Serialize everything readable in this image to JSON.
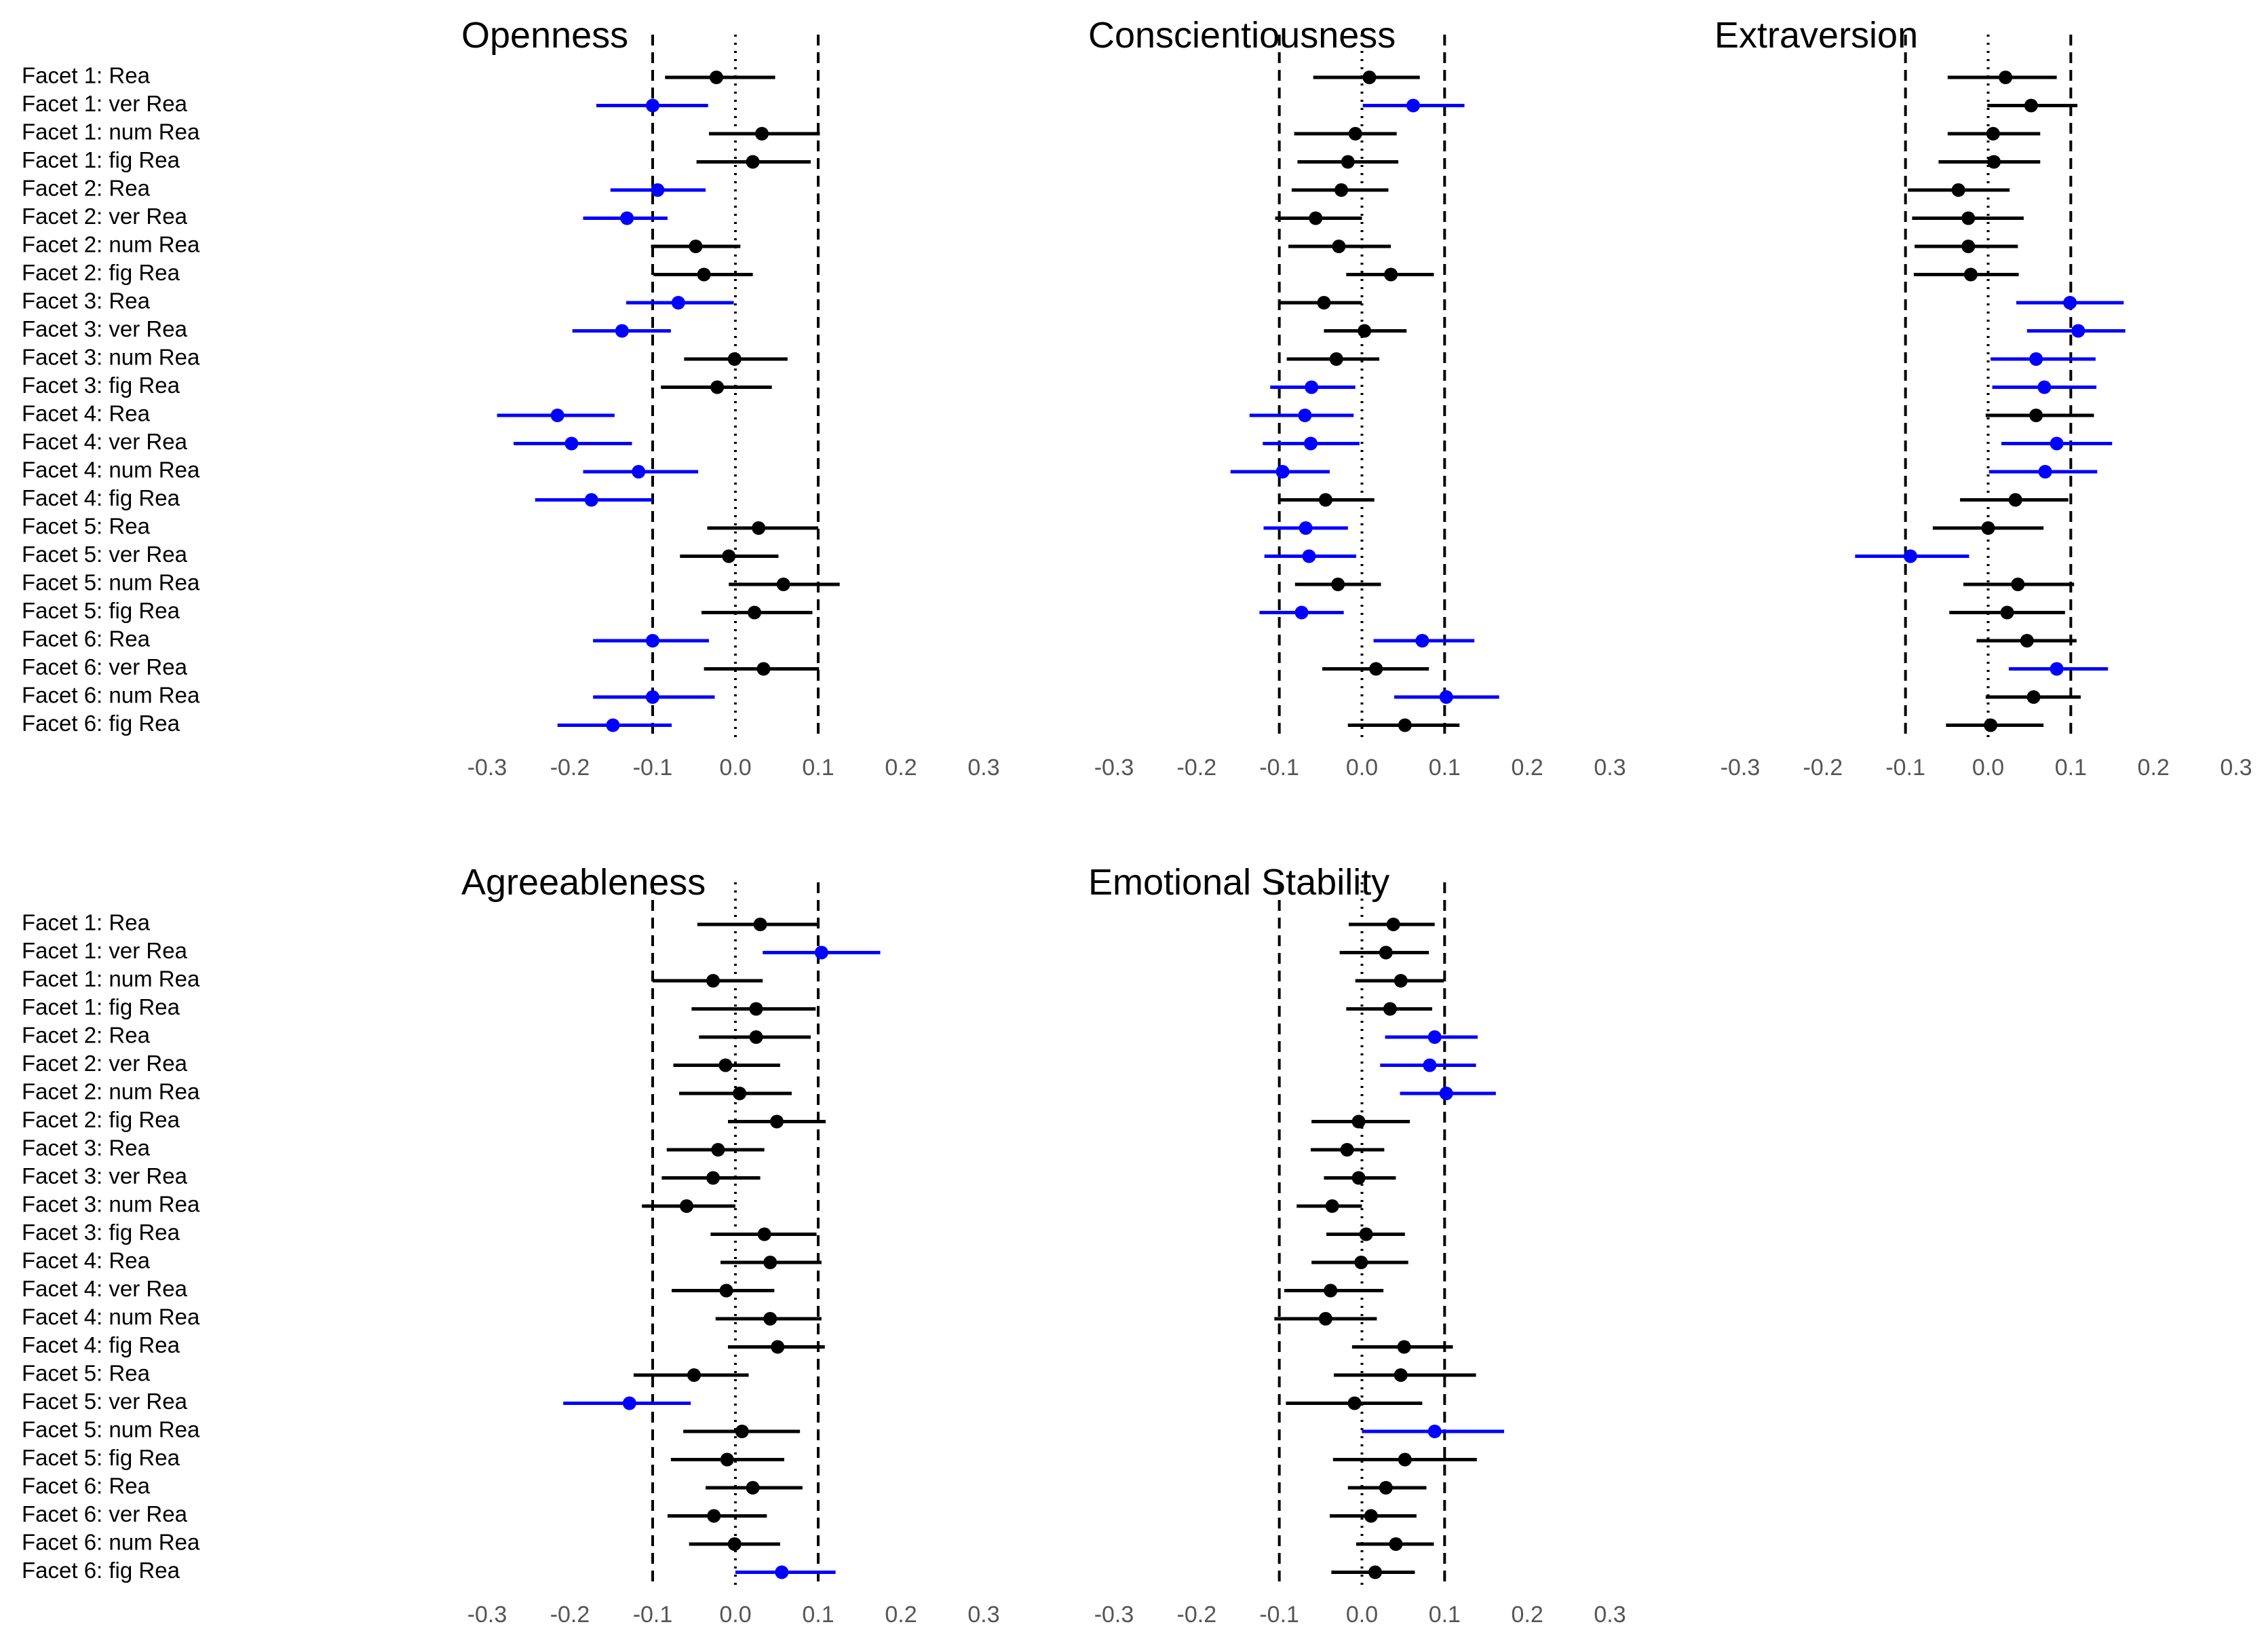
{
  "chart_data": {
    "type": "forest",
    "xlim": [
      -0.3,
      0.3
    ],
    "x_ticks": [
      -0.3,
      -0.2,
      -0.1,
      0.0,
      0.1,
      0.2,
      0.3
    ],
    "x_tick_labels": [
      "-0.3",
      "-0.2",
      "-0.1",
      "0.0",
      "0.1",
      "0.2",
      "0.3"
    ],
    "reference_lines": {
      "dashed": [
        -0.1,
        0.1
      ],
      "dotted": [
        0.0
      ]
    },
    "colors": {
      "default": "#000000",
      "highlight": "#0000ff",
      "tick": "#555555"
    },
    "row_labels": [
      "Facet 1: Rea",
      "Facet 1: ver Rea",
      "Facet 1: num Rea",
      "Facet 1: fig Rea",
      "Facet 2: Rea",
      "Facet 2: ver Rea",
      "Facet 2: num Rea",
      "Facet 2: fig Rea",
      "Facet 3: Rea",
      "Facet 3: ver Rea",
      "Facet 3: num Rea",
      "Facet 3: fig Rea",
      "Facet 4: Rea",
      "Facet 4: ver Rea",
      "Facet 4: num Rea",
      "Facet 4: fig Rea",
      "Facet 5: Rea",
      "Facet 5: ver Rea",
      "Facet 5: num Rea",
      "Facet 5: fig Rea",
      "Facet 6: Rea",
      "Facet 6: ver Rea",
      "Facet 6: num Rea",
      "Facet 6: fig Rea"
    ],
    "panels": [
      {
        "title": "Openness",
        "estimates": [
          -0.023,
          -0.1,
          0.032,
          0.021,
          -0.094,
          -0.131,
          -0.048,
          -0.038,
          -0.069,
          -0.137,
          -0.001,
          -0.022,
          -0.215,
          -0.198,
          -0.117,
          -0.174,
          0.028,
          -0.008,
          0.058,
          0.023,
          -0.1,
          0.034,
          -0.1,
          -0.148
        ],
        "lower": [
          -0.085,
          -0.168,
          -0.032,
          -0.047,
          -0.151,
          -0.184,
          -0.102,
          -0.099,
          -0.132,
          -0.197,
          -0.062,
          -0.09,
          -0.288,
          -0.268,
          -0.184,
          -0.242,
          -0.034,
          -0.067,
          -0.008,
          -0.041,
          -0.172,
          -0.038,
          -0.172,
          -0.215
        ],
        "upper": [
          0.048,
          -0.033,
          0.102,
          0.091,
          -0.036,
          -0.082,
          0.006,
          0.021,
          -0.002,
          -0.078,
          0.063,
          0.044,
          -0.146,
          -0.125,
          -0.045,
          -0.1,
          0.1,
          0.052,
          0.126,
          0.093,
          -0.032,
          0.101,
          -0.025,
          -0.077
        ],
        "significant": [
          false,
          true,
          false,
          false,
          true,
          true,
          false,
          false,
          true,
          true,
          false,
          false,
          true,
          true,
          true,
          true,
          false,
          false,
          false,
          false,
          true,
          false,
          true,
          true
        ]
      },
      {
        "title": "Conscientiousness",
        "estimates": [
          0.009,
          0.062,
          -0.008,
          -0.017,
          -0.025,
          -0.056,
          -0.028,
          0.035,
          -0.046,
          0.003,
          -0.031,
          -0.061,
          -0.069,
          -0.062,
          -0.096,
          -0.044,
          -0.068,
          -0.064,
          -0.029,
          -0.073,
          0.073,
          0.017,
          0.102,
          0.052
        ],
        "lower": [
          -0.059,
          0.001,
          -0.082,
          -0.078,
          -0.085,
          -0.105,
          -0.089,
          -0.019,
          -0.1,
          -0.046,
          -0.091,
          -0.111,
          -0.136,
          -0.12,
          -0.159,
          -0.101,
          -0.119,
          -0.118,
          -0.081,
          -0.124,
          0.014,
          -0.048,
          0.039,
          -0.017
        ],
        "upper": [
          0.07,
          0.124,
          0.042,
          0.044,
          0.032,
          0.0,
          0.035,
          0.087,
          0.0,
          0.054,
          0.021,
          -0.008,
          -0.01,
          -0.003,
          -0.039,
          0.015,
          -0.017,
          -0.007,
          0.023,
          -0.022,
          0.136,
          0.081,
          0.166,
          0.118
        ]
      },
      {
        "title": "Extraversion",
        "estimates": [
          0.021,
          0.052,
          0.006,
          0.007,
          -0.036,
          -0.024,
          -0.024,
          -0.021,
          0.099,
          0.109,
          0.058,
          0.068,
          0.058,
          0.083,
          0.069,
          0.033,
          0.0,
          -0.094,
          0.036,
          0.023,
          0.047,
          0.083,
          0.055,
          0.003
        ],
        "lower": [
          -0.049,
          -0.001,
          -0.049,
          -0.06,
          -0.097,
          -0.092,
          -0.089,
          -0.09,
          0.034,
          0.047,
          0.003,
          0.005,
          -0.003,
          0.016,
          0.001,
          -0.034,
          -0.067,
          -0.161,
          -0.03,
          -0.047,
          -0.014,
          0.025,
          -0.003,
          -0.051
        ],
        "upper": [
          0.083,
          0.108,
          0.063,
          0.063,
          0.026,
          0.043,
          0.036,
          0.037,
          0.164,
          0.166,
          0.13,
          0.131,
          0.128,
          0.15,
          0.132,
          0.097,
          0.067,
          -0.023,
          0.104,
          0.093,
          0.107,
          0.145,
          0.112,
          0.067
        ]
      },
      {
        "title": "Agreeableness",
        "estimates": [
          0.03,
          0.104,
          -0.027,
          0.025,
          0.025,
          -0.012,
          0.005,
          0.05,
          -0.021,
          -0.027,
          -0.059,
          0.035,
          0.042,
          -0.011,
          0.042,
          0.051,
          -0.05,
          -0.128,
          0.008,
          -0.01,
          0.021,
          -0.026,
          -0.001,
          0.056
        ],
        "lower": [
          -0.046,
          0.033,
          -0.1,
          -0.053,
          -0.044,
          -0.075,
          -0.068,
          -0.009,
          -0.083,
          -0.089,
          -0.113,
          -0.03,
          -0.018,
          -0.077,
          -0.024,
          -0.009,
          -0.123,
          -0.208,
          -0.063,
          -0.078,
          -0.036,
          -0.082,
          -0.056,
          0.0
        ],
        "upper": [
          0.101,
          0.175,
          0.033,
          0.097,
          0.091,
          0.054,
          0.068,
          0.109,
          0.035,
          0.03,
          0.0,
          0.098,
          0.104,
          0.047,
          0.104,
          0.108,
          0.016,
          -0.054,
          0.078,
          0.059,
          0.081,
          0.038,
          0.054,
          0.121
        ],
        "significant": [
          false,
          true,
          false,
          false,
          false,
          false,
          false,
          false,
          false,
          false,
          false,
          false,
          false,
          false,
          false,
          false,
          false,
          true,
          false,
          false,
          false,
          false,
          false,
          true
        ]
      },
      {
        "title": "Emotional Stability",
        "estimates": [
          0.038,
          0.029,
          0.047,
          0.034,
          0.088,
          0.082,
          0.102,
          -0.004,
          -0.018,
          -0.004,
          -0.036,
          0.005,
          -0.001,
          -0.038,
          -0.044,
          0.051,
          0.047,
          -0.009,
          0.088,
          0.052,
          0.029,
          0.011,
          0.041,
          0.016
        ],
        "lower": [
          -0.016,
          -0.027,
          -0.008,
          -0.019,
          0.028,
          0.022,
          0.046,
          -0.061,
          -0.062,
          -0.046,
          -0.079,
          -0.043,
          -0.061,
          -0.094,
          -0.106,
          -0.012,
          -0.034,
          -0.092,
          0.0,
          -0.035,
          -0.017,
          -0.039,
          -0.007,
          -0.037
        ],
        "upper": [
          0.088,
          0.081,
          0.099,
          0.085,
          0.14,
          0.138,
          0.162,
          0.058,
          0.027,
          0.041,
          0.0,
          0.052,
          0.056,
          0.026,
          0.018,
          0.11,
          0.138,
          0.073,
          0.172,
          0.139,
          0.078,
          0.066,
          0.087,
          0.064
        ],
        "significant": [
          false,
          false,
          false,
          false,
          true,
          true,
          true,
          false,
          false,
          false,
          false,
          false,
          false,
          false,
          false,
          false,
          false,
          false,
          true,
          false,
          false,
          false,
          false,
          false
        ]
      }
    ]
  }
}
